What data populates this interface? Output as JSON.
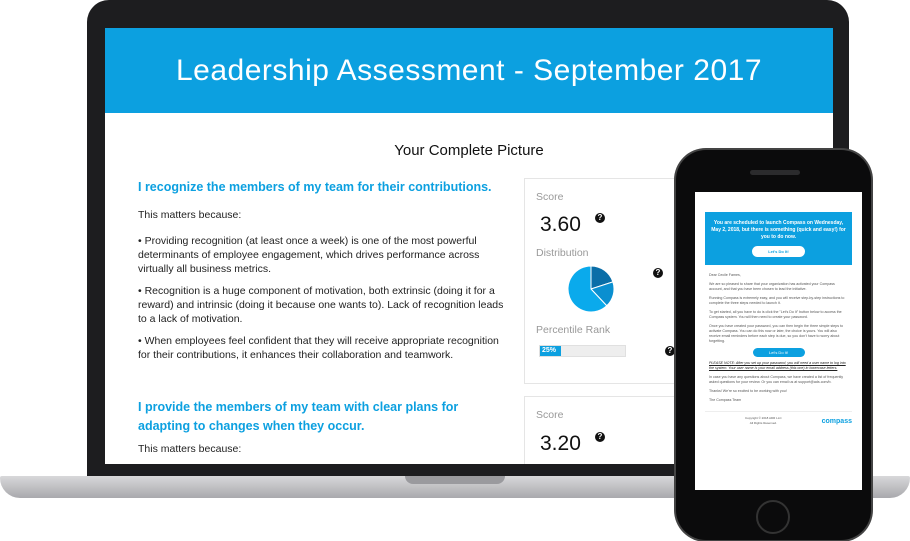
{
  "laptop": {
    "title": "Leadership Assessment - September 2017",
    "subtitle": "Your Complete Picture",
    "items": [
      {
        "question": "I recognize the members of my team for their contributions.",
        "intro": "This matters because:",
        "bullets": [
          "• Providing recognition (at least once a week) is one of the most powerful determinants of employee engagement, which drives performance across virtually all business metrics.",
          "• Recognition is a huge component of motivation, both extrinsic (doing it for a reward) and intrinsic (doing it because one wants to). Lack of recognition leads to a lack of motivation.",
          "• When employees feel confident that they will receive appropriate recognition for their contributions, it enhances their collaboration and teamwork."
        ],
        "score_label": "Score",
        "score": "3.60",
        "distribution_label": "Distribution",
        "distribution": [
          62,
          20,
          18
        ],
        "percentile_label": "Percentile Rank",
        "percentile": "25%",
        "percentile_value": 25
      },
      {
        "question": "I provide the members of my team with clear plans for adapting to changes when they occur.",
        "intro": "This matters because:",
        "score_label": "Score",
        "score": "3.20"
      }
    ],
    "help_icon": "?",
    "colors": {
      "accent": "#0ca0e0",
      "pie": [
        "#0aaaec",
        "#0a8fd0",
        "#0a6ea8"
      ]
    }
  },
  "phone": {
    "banner": "You are scheduled to launch Compass on Wednesday, May 2, 2018, but there is something (quick and easy!) for you to do now.",
    "button": "Let's Do It!",
    "greeting": "Dear Cecile Fames,",
    "paragraphs": [
      "We are so pleased to share that your organization has activated your Compass account, and that you have been chosen to lead the initiative.",
      "Running Compass is extremely easy, and you will receive step-by-step instructions to complete the three steps needed to launch it.",
      "To get started, all you have to do is click the \"Let's Do It\" button below to access the Compass system. You will then need to create your password.",
      "Once you have created your password, you can then begin the three simple steps to activate Compass. You can do this now or later, the choice is yours. You will also receive email reminders before each step is due, so you don't have to worry about forgetting."
    ],
    "button2": "Let's Do It!",
    "note": "PLEASE NOTE: After you set up your password, you will need a user name to log into the system. Your user name is your email address (this one) in lowercase letters.",
    "questions": "In case you have any questions about Compass, we have created a list of frequently asked questions for your review. Or you can email us at support@ads.com/b.",
    "thanks": "Thanks! We're so excited to be working with you!",
    "signoff": "The Compass Team",
    "copyright": "Copyright © 2018 ADR LLC",
    "rights": "All Rights Reserved.",
    "logo": "compass"
  }
}
